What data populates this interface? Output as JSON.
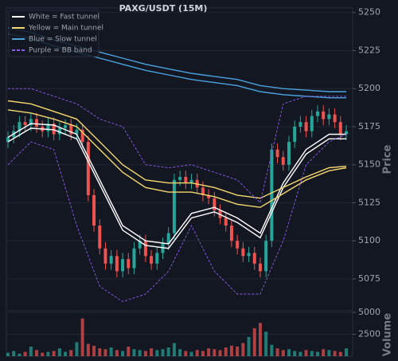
{
  "chart_data": {
    "type": "candlestick",
    "title": "PAXG/USDT (15M)",
    "y_label": "Price",
    "y2_label": "Volume",
    "ylim": [
      5054,
      5253
    ],
    "yticks": [
      5075,
      5100,
      5125,
      5150,
      5175,
      5200,
      5225,
      5250
    ],
    "y2lim": [
      0,
      5000
    ],
    "y2ticks": [
      2500,
      5000
    ],
    "grid": true,
    "up_color": "#26a69a",
    "down_color": "#ef5350",
    "open": [
      5165,
      5168,
      5172,
      5178,
      5176,
      5180,
      5175,
      5172,
      5177,
      5170,
      5174,
      5176,
      5170,
      5173,
      5165,
      5130,
      5110,
      5095,
      5085,
      5090,
      5080,
      5088,
      5082,
      5095,
      5100,
      5090,
      5085,
      5092,
      5098,
      5105,
      5140,
      5142,
      5138,
      5140,
      5135,
      5130,
      5128,
      5120,
      5115,
      5110,
      5100,
      5095,
      5090,
      5092,
      5085,
      5080,
      5100,
      5160,
      5155,
      5150,
      5165,
      5175,
      5178,
      5172,
      5182,
      5185,
      5180,
      5183,
      5178,
      5170
    ],
    "high": [
      5172,
      5176,
      5182,
      5182,
      5184,
      5184,
      5179,
      5181,
      5181,
      5178,
      5180,
      5180,
      5177,
      5177,
      5169,
      5134,
      5114,
      5099,
      5094,
      5094,
      5092,
      5092,
      5099,
      5104,
      5104,
      5094,
      5096,
      5102,
      5109,
      5144,
      5146,
      5146,
      5144,
      5144,
      5139,
      5134,
      5132,
      5124,
      5119,
      5114,
      5104,
      5099,
      5096,
      5096,
      5089,
      5104,
      5164,
      5164,
      5159,
      5169,
      5179,
      5182,
      5182,
      5186,
      5189,
      5189,
      5187,
      5187,
      5182,
      5176
    ],
    "low": [
      5161,
      5164,
      5168,
      5172,
      5172,
      5171,
      5168,
      5168,
      5166,
      5166,
      5170,
      5166,
      5166,
      5161,
      5126,
      5106,
      5091,
      5081,
      5081,
      5076,
      5076,
      5078,
      5078,
      5091,
      5086,
      5081,
      5081,
      5088,
      5094,
      5101,
      5136,
      5134,
      5134,
      5131,
      5126,
      5124,
      5116,
      5111,
      5106,
      5096,
      5091,
      5086,
      5086,
      5081,
      5076,
      5076,
      5096,
      5151,
      5146,
      5146,
      5161,
      5171,
      5168,
      5168,
      5178,
      5176,
      5176,
      5174,
      5166,
      5166
    ],
    "close": [
      5168,
      5172,
      5178,
      5176,
      5180,
      5175,
      5172,
      5177,
      5170,
      5174,
      5176,
      5170,
      5173,
      5165,
      5130,
      5110,
      5095,
      5085,
      5090,
      5080,
      5088,
      5082,
      5095,
      5100,
      5090,
      5085,
      5092,
      5098,
      5105,
      5140,
      5142,
      5138,
      5140,
      5135,
      5130,
      5128,
      5120,
      5115,
      5110,
      5100,
      5095,
      5090,
      5092,
      5085,
      5080,
      5100,
      5160,
      5155,
      5150,
      5165,
      5175,
      5178,
      5172,
      5182,
      5185,
      5180,
      5183,
      5178,
      5170,
      5172
    ],
    "volume": [
      400,
      600,
      300,
      500,
      1100,
      700,
      400,
      500,
      600,
      900,
      500,
      700,
      1600,
      4300,
      1400,
      1200,
      900,
      800,
      1000,
      700,
      600,
      1100,
      800,
      700,
      600,
      900,
      700,
      800,
      1000,
      1500,
      800,
      600,
      500,
      700,
      600,
      900,
      800,
      700,
      1000,
      1200,
      1100,
      1500,
      2200,
      3200,
      3800,
      2800,
      1300,
      900,
      700,
      800,
      600,
      500,
      700,
      600,
      500,
      800,
      700,
      600,
      500,
      900
    ],
    "overlay_x": [
      0,
      4,
      8,
      12,
      16,
      20,
      24,
      28,
      32,
      36,
      40,
      44,
      48,
      52,
      56,
      59
    ],
    "overlays": [
      {
        "name": "White = Fast tunnel",
        "color": "#ffffff",
        "dashed": false,
        "upper": [
          5168,
          5177,
          5176,
          5170,
          5140,
          5110,
          5100,
          5098,
          5118,
          5122,
          5115,
          5105,
          5138,
          5160,
          5170,
          5170
        ],
        "lower": [
          5165,
          5174,
          5173,
          5167,
          5137,
          5107,
          5097,
          5095,
          5115,
          5119,
          5112,
          5102,
          5135,
          5157,
          5167,
          5167
        ]
      },
      {
        "name": "Yellow = Main tunnel",
        "color": "#f5d76e",
        "dashed": false,
        "upper": [
          5192,
          5190,
          5185,
          5180,
          5165,
          5150,
          5140,
          5138,
          5138,
          5135,
          5130,
          5128,
          5135,
          5142,
          5148,
          5149
        ],
        "lower": [
          5186,
          5184,
          5180,
          5175,
          5160,
          5145,
          5135,
          5132,
          5132,
          5129,
          5124,
          5122,
          5131,
          5140,
          5146,
          5148
        ]
      },
      {
        "name": "Blue = Slow tunnel",
        "color": "#4aa3df",
        "dashed": false,
        "upper": [
          5240,
          5237,
          5232,
          5228,
          5224,
          5220,
          5216,
          5213,
          5210,
          5208,
          5206,
          5202,
          5200,
          5199,
          5198,
          5198
        ],
        "lower": [
          5236,
          5233,
          5228,
          5224,
          5220,
          5216,
          5212,
          5209,
          5206,
          5204,
          5202,
          5198,
          5196,
          5195,
          5194,
          5194
        ]
      },
      {
        "name": "Purple = BB band",
        "color": "#8e5cf0",
        "dashed": true,
        "upper": [
          5200,
          5200,
          5195,
          5190,
          5180,
          5175,
          5150,
          5148,
          5150,
          5145,
          5140,
          5125,
          5190,
          5195,
          5195,
          5195
        ],
        "lower": [
          5150,
          5165,
          5160,
          5110,
          5070,
          5060,
          5065,
          5080,
          5110,
          5080,
          5065,
          5065,
          5100,
          5150,
          5165,
          5170
        ]
      }
    ]
  }
}
